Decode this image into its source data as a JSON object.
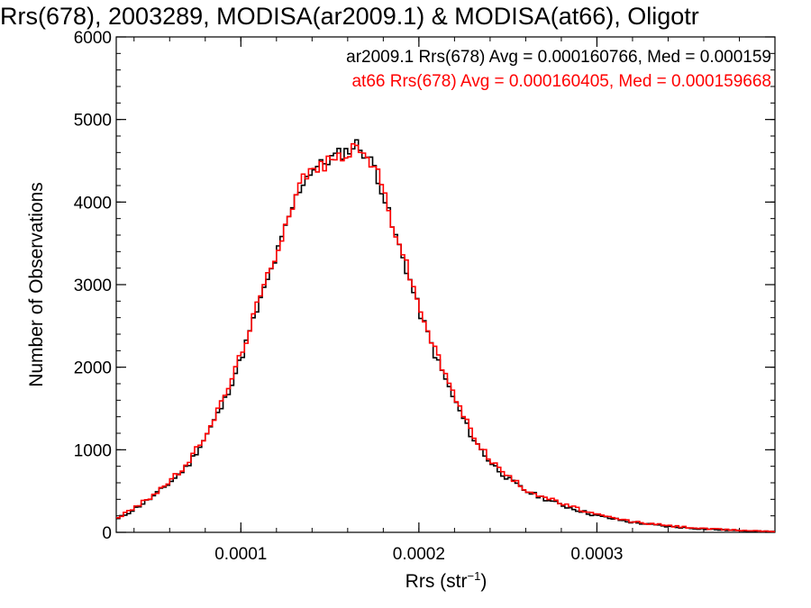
{
  "chart_data": {
    "type": "histogram-step",
    "title": "Rrs(678), 2003289, MODISA(ar2009.1) & MODISA(at66), Oligotr",
    "xlabel": {
      "prefix": "Rrs (str",
      "superscript": "−1",
      "suffix": ")"
    },
    "ylabel": "Number of Observations",
    "xlim": [
      3e-05,
      0.0004
    ],
    "ylim": [
      0,
      6000
    ],
    "x_ticks": [
      {
        "value": 0.0001,
        "label": "0.0001"
      },
      {
        "value": 0.0002,
        "label": "0.0002"
      },
      {
        "value": 0.0003,
        "label": "0.0003"
      }
    ],
    "y_ticks": [
      {
        "value": 0,
        "label": "0"
      },
      {
        "value": 1000,
        "label": "1000"
      },
      {
        "value": 2000,
        "label": "2000"
      },
      {
        "value": 3000,
        "label": "3000"
      },
      {
        "value": 4000,
        "label": "4000"
      },
      {
        "value": 5000,
        "label": "5000"
      },
      {
        "value": 6000,
        "label": "6000"
      }
    ],
    "x_minor_tick_step": 2e-05,
    "y_minor_tick_step": 200,
    "grid": false,
    "legend_position": "top-right",
    "series": [
      {
        "label": "ar2009.1 Rrs(678) Avg = 0.000160766, Med = 0.000159",
        "color": "#000000",
        "x": [
          3e-05,
          4e-05,
          5e-05,
          6e-05,
          7e-05,
          8e-05,
          9e-05,
          0.0001,
          0.00011,
          0.00012,
          0.00013,
          0.000135,
          0.00014,
          0.000145,
          0.00015,
          0.000155,
          0.00016,
          0.000165,
          0.00017,
          0.000175,
          0.00018,
          0.000185,
          0.00019,
          0.0002,
          0.00021,
          0.00022,
          0.00023,
          0.00024,
          0.00025,
          0.00026,
          0.00028,
          0.0003,
          0.00032,
          0.00034,
          0.00036,
          0.00038,
          0.0004
        ],
        "y": [
          150,
          280,
          420,
          600,
          800,
          1150,
          1550,
          2100,
          2750,
          3350,
          4000,
          4250,
          4400,
          4450,
          4520,
          4580,
          4620,
          4700,
          4580,
          4430,
          4100,
          3700,
          3400,
          2700,
          2100,
          1600,
          1150,
          850,
          650,
          500,
          330,
          200,
          120,
          70,
          40,
          20,
          10
        ]
      },
      {
        "label": "at66 Rrs(678) Avg = 0.000160405, Med = 0.000159668",
        "color": "#ff0000",
        "x": [
          3e-05,
          4e-05,
          5e-05,
          6e-05,
          7e-05,
          8e-05,
          9e-05,
          0.0001,
          0.00011,
          0.00012,
          0.00013,
          0.000135,
          0.00014,
          0.000145,
          0.00015,
          0.000155,
          0.00016,
          0.000165,
          0.00017,
          0.000175,
          0.00018,
          0.000185,
          0.00019,
          0.0002,
          0.00021,
          0.00022,
          0.00023,
          0.00024,
          0.00025,
          0.00026,
          0.00028,
          0.0003,
          0.00032,
          0.00034,
          0.00036,
          0.00038,
          0.0004
        ],
        "y": [
          170,
          290,
          440,
          620,
          820,
          1180,
          1600,
          2150,
          2800,
          3400,
          4050,
          4300,
          4380,
          4430,
          4500,
          4550,
          4600,
          4650,
          4560,
          4450,
          4150,
          3750,
          3450,
          2750,
          2150,
          1650,
          1200,
          880,
          680,
          520,
          350,
          210,
          130,
          80,
          45,
          25,
          12
        ]
      }
    ]
  }
}
